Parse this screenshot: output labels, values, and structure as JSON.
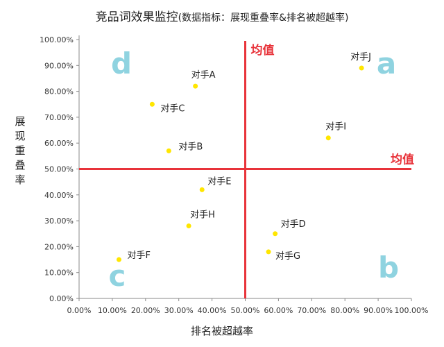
{
  "chart_data": {
    "type": "scatter",
    "title": "竞品词效果监控",
    "subtitle": "(数据指标：展现重叠率&排名被超越率)",
    "xlabel": "排名被超越率",
    "ylabel": "展现重叠率",
    "xlim": [
      0,
      100
    ],
    "ylim": [
      0,
      100
    ],
    "x_ticks": [
      "0.00%",
      "10.00%",
      "20.00%",
      "30.00%",
      "40.00%",
      "50.00%",
      "60.00%",
      "70.00%",
      "80.00%",
      "90.00%",
      "100.00%"
    ],
    "y_ticks": [
      "0.00%",
      "10.00%",
      "20.00%",
      "30.00%",
      "40.00%",
      "50.00%",
      "60.00%",
      "70.00%",
      "80.00%",
      "90.00%",
      "100.00%"
    ],
    "grid": false,
    "point_color": "#ffe600",
    "points": [
      {
        "label": "对手A",
        "x": 35,
        "y": 82
      },
      {
        "label": "对手B",
        "x": 27,
        "y": 57
      },
      {
        "label": "对手C",
        "x": 22,
        "y": 75
      },
      {
        "label": "对手D",
        "x": 59,
        "y": 25
      },
      {
        "label": "对手E",
        "x": 37,
        "y": 42
      },
      {
        "label": "对手F",
        "x": 12,
        "y": 15
      },
      {
        "label": "对手G",
        "x": 57,
        "y": 18
      },
      {
        "label": "对手H",
        "x": 33,
        "y": 28
      },
      {
        "label": "对手I",
        "x": 75,
        "y": 62
      },
      {
        "label": "对手J",
        "x": 85,
        "y": 89
      }
    ],
    "mean_lines": {
      "x": 50,
      "y": 50,
      "label": "均值",
      "color": "#e8333a"
    },
    "quadrants": {
      "color": "#8fd3e0",
      "labels": [
        "a",
        "b",
        "c",
        "d"
      ]
    }
  }
}
